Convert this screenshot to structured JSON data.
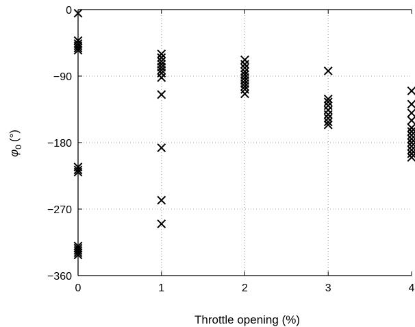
{
  "chart_data": {
    "type": "scatter",
    "title": "",
    "xlabel": "Throttle opening (%)",
    "ylabel_symbol": "φ",
    "ylabel_subscript": "0",
    "ylabel_unit": "(°)",
    "xlim": [
      0,
      4
    ],
    "ylim": [
      -360,
      0
    ],
    "xticks": [
      0,
      1,
      2,
      3,
      4
    ],
    "yticks": [
      0,
      -90,
      -180,
      -270,
      -360
    ],
    "xtick_labels": [
      "0",
      "1",
      "2",
      "3",
      "4"
    ],
    "ytick_labels": [
      "0",
      "−90",
      "−180",
      "−270",
      "−360"
    ],
    "grid": true,
    "marker": "x",
    "series": [
      {
        "points": [
          [
            0,
            -5
          ],
          [
            0,
            -42
          ],
          [
            0,
            -46
          ],
          [
            0,
            -49
          ],
          [
            0,
            -52
          ],
          [
            0,
            -55
          ],
          [
            0,
            -213
          ],
          [
            0,
            -217
          ],
          [
            0,
            -220
          ],
          [
            0,
            -320
          ],
          [
            0,
            -323
          ],
          [
            0,
            -326
          ],
          [
            0,
            -329
          ],
          [
            0,
            -332
          ],
          [
            1,
            -60
          ],
          [
            1,
            -65
          ],
          [
            1,
            -70
          ],
          [
            1,
            -74
          ],
          [
            1,
            -78
          ],
          [
            1,
            -82
          ],
          [
            1,
            -86
          ],
          [
            1,
            -92
          ],
          [
            1,
            -115
          ],
          [
            1,
            -187
          ],
          [
            1,
            -258
          ],
          [
            1,
            -290
          ],
          [
            2,
            -68
          ],
          [
            2,
            -74
          ],
          [
            2,
            -79
          ],
          [
            2,
            -84
          ],
          [
            2,
            -88
          ],
          [
            2,
            -92
          ],
          [
            2,
            -96
          ],
          [
            2,
            -100
          ],
          [
            2,
            -104
          ],
          [
            2,
            -108
          ],
          [
            2,
            -114
          ],
          [
            3,
            -83
          ],
          [
            3,
            -121
          ],
          [
            3,
            -125
          ],
          [
            3,
            -130
          ],
          [
            3,
            -136
          ],
          [
            3,
            -142
          ],
          [
            3,
            -147
          ],
          [
            3,
            -152
          ],
          [
            3,
            -156
          ],
          [
            4,
            -110
          ],
          [
            4,
            -128
          ],
          [
            4,
            -140
          ],
          [
            4,
            -150
          ],
          [
            4,
            -160
          ],
          [
            4,
            -165
          ],
          [
            4,
            -170
          ],
          [
            4,
            -175
          ],
          [
            4,
            -180
          ],
          [
            4,
            -185
          ],
          [
            4,
            -190
          ],
          [
            4,
            -195
          ],
          [
            4,
            -200
          ]
        ]
      }
    ]
  }
}
